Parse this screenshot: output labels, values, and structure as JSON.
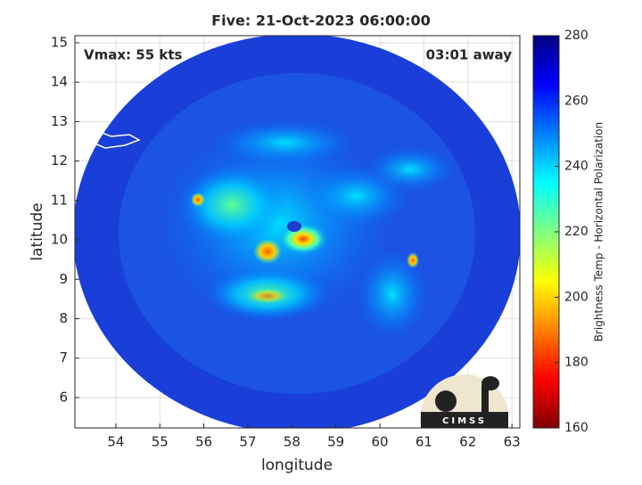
{
  "chart_data": {
    "type": "heatmap",
    "title": "Five: 21-Oct-2023 06:00:00",
    "annotations": [
      "Vmax: 55 kts",
      "03:01 away"
    ],
    "x_label": "longitude",
    "y_label": "latitude",
    "xlim": [
      53.07,
      63.18
    ],
    "xticks": [
      54,
      55,
      56,
      57,
      58,
      59,
      60,
      61,
      62,
      63
    ],
    "ylim": [
      5.23,
      15.18
    ],
    "yticks": [
      6,
      7,
      8,
      9,
      10,
      11,
      12,
      13,
      14,
      15
    ],
    "grid": true,
    "colorbar": {
      "label": "Brightness Temp - Horizontal Polarization",
      "lim": [
        160,
        280
      ],
      "ticks": [
        160,
        180,
        200,
        220,
        240,
        260,
        280
      ],
      "colormap": [
        "#800000",
        "#ff0000",
        "#ff8000",
        "#ffff00",
        "#80ff80",
        "#00ffff",
        "#0080ff",
        "#0000ff",
        "#000080"
      ]
    },
    "logo": "CIMSS"
  }
}
